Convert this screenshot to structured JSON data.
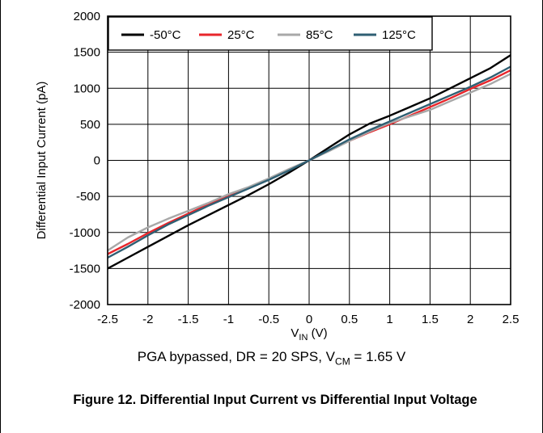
{
  "chart_data": {
    "type": "line",
    "xlabel": {
      "main": "V",
      "sub": "IN",
      "unit": " (V)"
    },
    "ylabel": "Differential Input Current (pA)",
    "xlim": [
      -2.5,
      2.5
    ],
    "ylim": [
      -2000,
      2000
    ],
    "x_ticks": [
      "-2.5",
      "-2",
      "-1.5",
      "-1",
      "-0.5",
      "0",
      "0.5",
      "1",
      "1.5",
      "2",
      "2.5"
    ],
    "y_ticks": [
      "2000",
      "1500",
      "1000",
      "500",
      "0",
      "-500",
      "-1000",
      "-1500",
      "-2000"
    ],
    "grid": true,
    "legend_position": "top",
    "series": [
      {
        "name": "-50°C",
        "color": "#000000",
        "x": [
          -2.5,
          -2.25,
          -2,
          -1.75,
          -1.5,
          -1.25,
          -1,
          -0.75,
          -0.5,
          -0.25,
          0,
          0.25,
          0.5,
          0.75,
          1,
          1.25,
          1.5,
          1.75,
          2,
          2.25,
          2.5
        ],
        "y": [
          -1500,
          -1350,
          -1200,
          -1050,
          -900,
          -760,
          -620,
          -480,
          -330,
          -170,
          0,
          180,
          360,
          510,
          620,
          740,
          860,
          1000,
          1140,
          1280,
          1460
        ]
      },
      {
        "name": "25°C",
        "color": "#e8262b",
        "x": [
          -2.5,
          -2.25,
          -2,
          -1.75,
          -1.5,
          -1.25,
          -1,
          -0.75,
          -0.5,
          -0.25,
          0,
          0.25,
          0.5,
          0.75,
          1,
          1.25,
          1.5,
          1.75,
          2,
          2.25,
          2.5
        ],
        "y": [
          -1300,
          -1160,
          -1010,
          -870,
          -740,
          -610,
          -500,
          -380,
          -260,
          -130,
          0,
          140,
          270,
          390,
          500,
          620,
          740,
          860,
          990,
          1110,
          1250
        ]
      },
      {
        "name": "85°C",
        "color": "#a8a8a8",
        "x": [
          -2.5,
          -2.25,
          -2,
          -1.75,
          -1.5,
          -1.25,
          -1,
          -0.75,
          -0.5,
          -0.25,
          0,
          0.25,
          0.5,
          0.75,
          1,
          1.25,
          1.5,
          1.75,
          2,
          2.25,
          2.5
        ],
        "y": [
          -1250,
          -1070,
          -930,
          -810,
          -700,
          -590,
          -470,
          -370,
          -250,
          -120,
          0,
          130,
          270,
          400,
          520,
          610,
          700,
          820,
          940,
          1060,
          1200
        ]
      },
      {
        "name": "125°C",
        "color": "#2f5f73",
        "x": [
          -2.5,
          -2.25,
          -2,
          -1.75,
          -1.5,
          -1.25,
          -1,
          -0.75,
          -0.5,
          -0.25,
          0,
          0.25,
          0.5,
          0.75,
          1,
          1.25,
          1.5,
          1.75,
          2,
          2.25,
          2.5
        ],
        "y": [
          -1350,
          -1200,
          -1040,
          -890,
          -760,
          -630,
          -510,
          -390,
          -270,
          -140,
          0,
          145,
          290,
          420,
          540,
          660,
          780,
          900,
          1020,
          1150,
          1300
        ]
      }
    ]
  },
  "caption": {
    "conditions_text": "PGA bypassed, DR = 20 SPS, V",
    "conditions_sub": "CM",
    "conditions_tail": " = 1.65 V",
    "figure_title": "Figure 12. Differential Input Current vs Differential Input Voltage"
  }
}
